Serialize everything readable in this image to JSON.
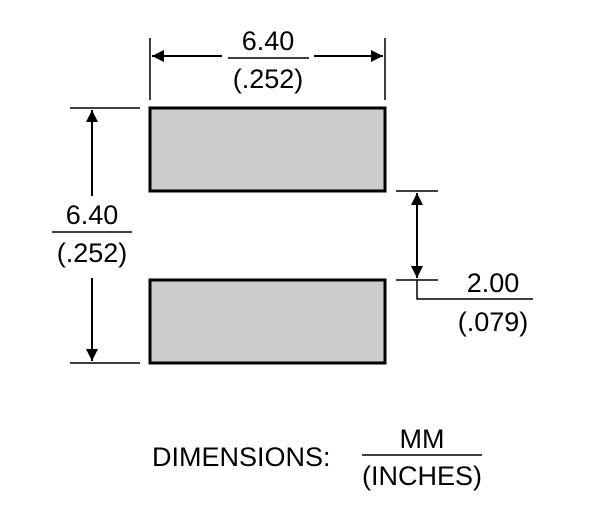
{
  "top_dimension": {
    "mm": "6.40",
    "inches": "(.252)"
  },
  "left_dimension": {
    "mm": "6.40",
    "inches": "(.252)"
  },
  "gap_dimension": {
    "mm": "2.00",
    "inches": "(.079)"
  },
  "legend": {
    "label": "DIMENSIONS:",
    "numerator": "MM",
    "denominator": "(INCHES)"
  },
  "colors": {
    "pad_fill": "#cccccc",
    "line": "#000000"
  }
}
